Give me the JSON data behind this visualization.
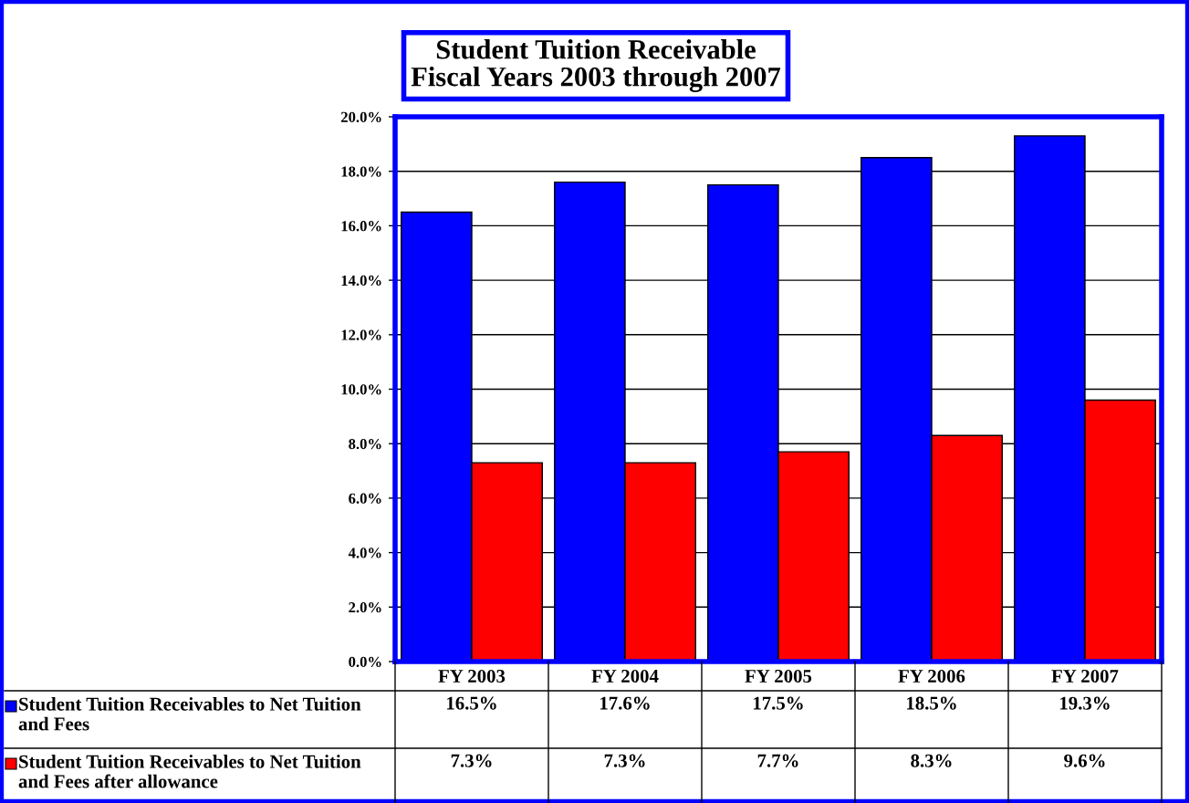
{
  "chart_data": {
    "type": "bar",
    "title": "Student Tuition Receivable\nFiscal Years 2003 through 2007",
    "categories": [
      "FY 2003",
      "FY 2004",
      "FY 2005",
      "FY 2006",
      "FY 2007"
    ],
    "series": [
      {
        "name": "Student Tuition Receivables to Net Tuition and Fees",
        "color": "#0000ff",
        "values": [
          16.5,
          17.6,
          17.5,
          18.5,
          19.3
        ],
        "value_labels": [
          "16.5%",
          "17.6%",
          "17.5%",
          "18.5%",
          "19.3%"
        ]
      },
      {
        "name": "Student Tuition Receivables to Net Tuition and Fees after allowance",
        "color": "#ff0000",
        "values": [
          7.3,
          7.3,
          7.7,
          8.3,
          9.6
        ],
        "value_labels": [
          "7.3%",
          "7.3%",
          "7.7%",
          "8.3%",
          "9.6%"
        ]
      }
    ],
    "ylim": [
      0,
      20
    ],
    "yticks": [
      {
        "value": 0,
        "label": "0.0%"
      },
      {
        "value": 2,
        "label": "2.0%"
      },
      {
        "value": 4,
        "label": "4.0%"
      },
      {
        "value": 6,
        "label": "6.0%"
      },
      {
        "value": 8,
        "label": "8.0%"
      },
      {
        "value": 10,
        "label": "10.0%"
      },
      {
        "value": 12,
        "label": "12.0%"
      },
      {
        "value": 14,
        "label": "14.0%"
      },
      {
        "value": 16,
        "label": "16.0%"
      },
      {
        "value": 18,
        "label": "18.0%"
      },
      {
        "value": 20,
        "label": "20.0%"
      }
    ],
    "grid": "y",
    "legend": "bottom"
  }
}
